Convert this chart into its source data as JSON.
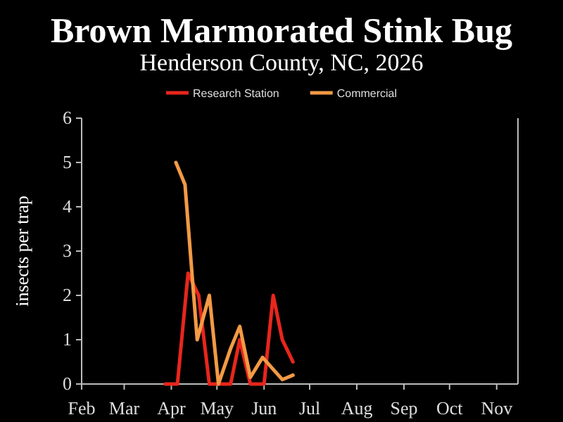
{
  "chart_data": {
    "type": "line",
    "title": "Brown Marmorated Stink Bug",
    "subtitle": "Henderson County, NC, 2026",
    "ylabel": "insects per trap",
    "series": [
      {
        "name": "Research Station",
        "color": "#e8261c",
        "x": [
          "2026-03-28",
          "2026-04-05",
          "2026-04-12",
          "2026-04-19",
          "2026-04-26",
          "2026-05-10",
          "2026-05-16",
          "2026-05-23",
          "2026-06-01",
          "2026-06-07",
          "2026-06-13",
          "2026-06-20"
        ],
        "values": [
          0,
          0,
          2.5,
          2,
          0,
          0,
          1,
          0,
          0,
          2,
          1,
          0.5
        ]
      },
      {
        "name": "Commercial",
        "color": "#f39a45",
        "x": [
          "2026-04-04",
          "2026-04-10",
          "2026-04-18",
          "2026-04-26",
          "2026-05-02",
          "2026-05-10",
          "2026-05-16",
          "2026-05-23",
          "2026-05-31",
          "2026-06-13",
          "2026-06-20"
        ],
        "values": [
          5,
          4.5,
          1,
          2,
          0,
          0.8,
          1.3,
          0.15,
          0.6,
          0.1,
          0.2
        ]
      }
    ],
    "xlim": [
      "2026-02-01",
      "2026-11-15"
    ],
    "xticks": [
      {
        "value": "2026-02-01",
        "label": "Feb"
      },
      {
        "value": "2026-03-01",
        "label": "Mar"
      },
      {
        "value": "2026-04-01",
        "label": "Apr"
      },
      {
        "value": "2026-05-01",
        "label": "May"
      },
      {
        "value": "2026-06-01",
        "label": "Jun"
      },
      {
        "value": "2026-07-01",
        "label": "Jul"
      },
      {
        "value": "2026-08-01",
        "label": "Aug"
      },
      {
        "value": "2026-09-01",
        "label": "Sep"
      },
      {
        "value": "2026-10-01",
        "label": "Oct"
      },
      {
        "value": "2026-11-01",
        "label": "Nov"
      }
    ],
    "ylim": [
      0,
      6
    ],
    "yticks": [
      0,
      1,
      2,
      3,
      4,
      5,
      6
    ],
    "grid": false,
    "legend": "top",
    "marker": "none",
    "line_style": "solid"
  }
}
